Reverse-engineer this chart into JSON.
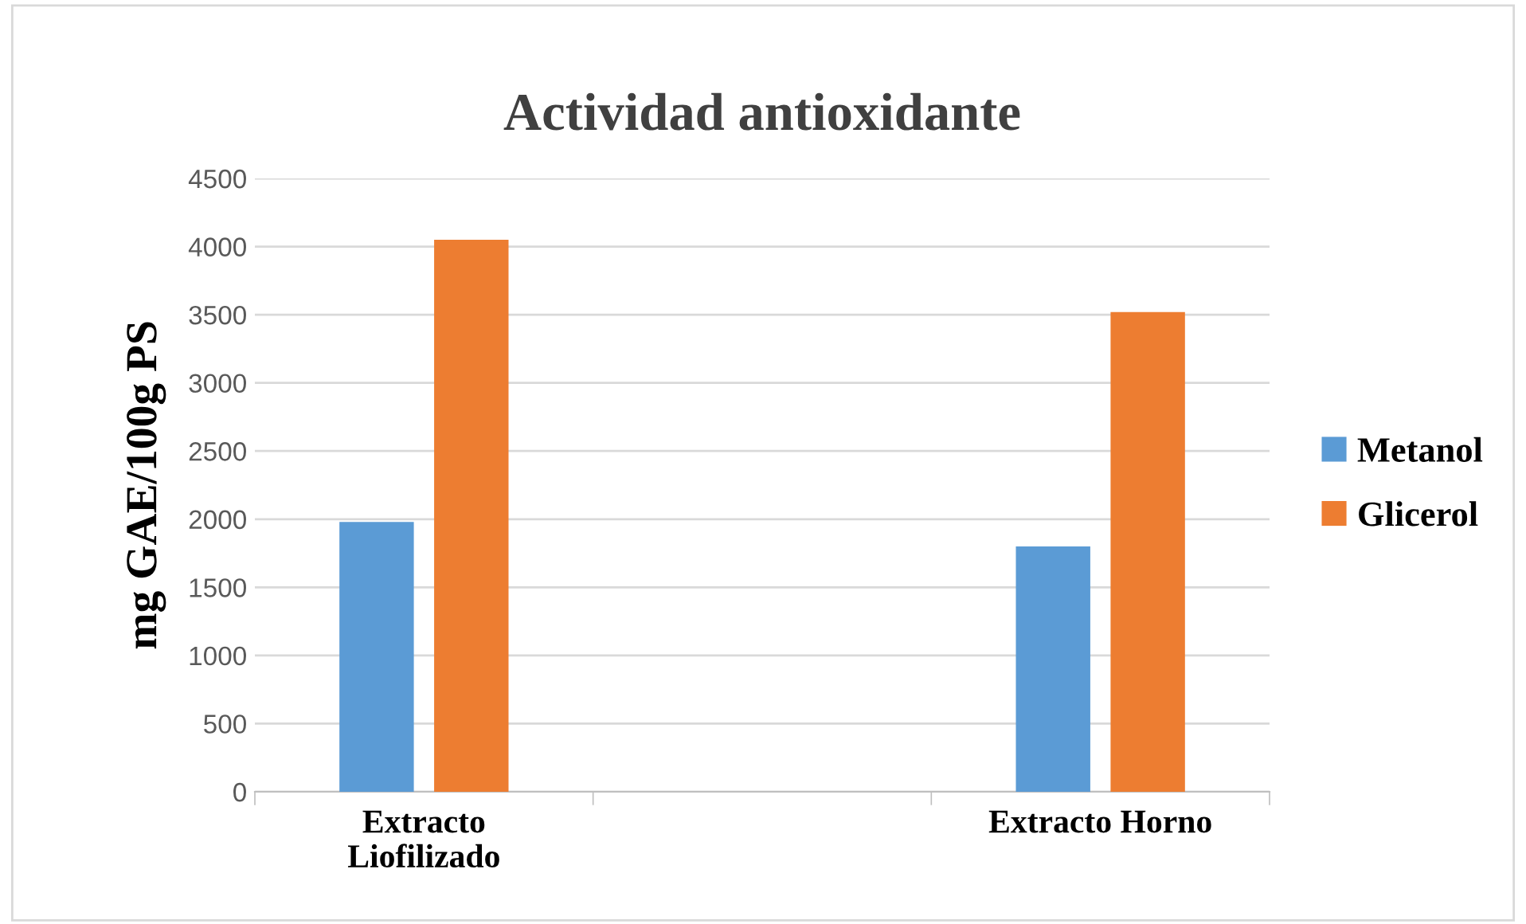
{
  "chart_data": {
    "type": "bar",
    "title": "Actividad antioxidante",
    "ylabel": "mg GAE/100g PS",
    "categories": [
      "Extracto Liofilizado",
      null,
      "Extracto Horno"
    ],
    "series": [
      {
        "name": "Metanol",
        "color": "#5b9bd5",
        "values": [
          1980,
          null,
          1800
        ]
      },
      {
        "name": "Glicerol",
        "color": "#ed7d31",
        "values": [
          4050,
          null,
          3520
        ]
      }
    ],
    "ylim": [
      0,
      4500
    ],
    "yticks": [
      0,
      500,
      1000,
      1500,
      2000,
      2500,
      3000,
      3500,
      4000,
      4500
    ],
    "grid": "y",
    "legend": "right"
  }
}
